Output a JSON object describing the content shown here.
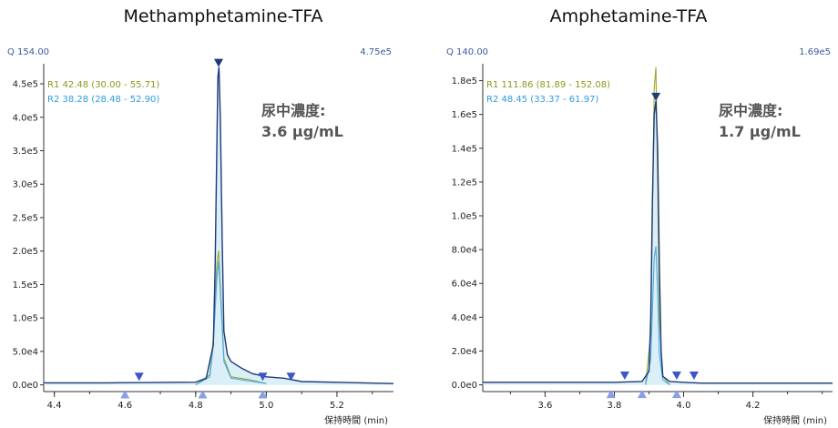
{
  "chart_data": [
    {
      "type": "line",
      "title": "Methamphetamine-TFA",
      "quant_label": "Q 154.00",
      "max_label": "4.75e5",
      "r1_label": "R1 42.48 (30.00 - 55.71)",
      "r2_label": "R2 38.28 (28.48 - 52.90)",
      "concentration_label": "尿中濃度:",
      "concentration_value": "3.6 μg/mL",
      "xlabel": "保持時間 (min)",
      "xlim": [
        4.37,
        5.36
      ],
      "ylim": [
        -10000,
        480000
      ],
      "xticks": [
        4.4,
        4.6,
        4.8,
        5.0,
        5.2
      ],
      "xtick_labels": [
        "4.4",
        "4.6",
        "4.8",
        "5.0",
        "5.2"
      ],
      "yticks": [
        0,
        50000,
        100000,
        150000,
        200000,
        250000,
        300000,
        350000,
        400000,
        450000
      ],
      "ytick_labels": [
        "0.0e0",
        "5.0e4",
        "1.0e5",
        "1.5e5",
        "2.0e5",
        "2.5e5",
        "3.0e5",
        "3.5e5",
        "4.0e5",
        "4.5e5"
      ],
      "peak_rt": 4.865,
      "series": [
        {
          "color": "#1f3a7a",
          "x": [
            4.37,
            4.55,
            4.8,
            4.83,
            4.85,
            4.855,
            4.86,
            4.863,
            4.866,
            4.87,
            4.875,
            4.88,
            4.89,
            4.9,
            4.93,
            4.96,
            5.0,
            5.05,
            5.1,
            5.36
          ],
          "y": [
            3000,
            3000,
            4000,
            10000,
            60000,
            170000,
            360000,
            460000,
            475000,
            400000,
            220000,
            80000,
            45000,
            35000,
            25000,
            17000,
            12000,
            10000,
            5000,
            2000
          ]
        },
        {
          "color": "#9aa82a",
          "x": [
            4.8,
            4.84,
            4.85,
            4.86,
            4.865,
            4.87,
            4.88,
            4.9,
            4.95,
            5.0
          ],
          "y": [
            0,
            15000,
            70000,
            180000,
            200000,
            150000,
            40000,
            12000,
            8000,
            2000
          ]
        },
        {
          "color": "#4aa8e8",
          "x": [
            4.8,
            4.84,
            4.85,
            4.86,
            4.865,
            4.87,
            4.88,
            4.9,
            4.95,
            5.0
          ],
          "y": [
            0,
            12000,
            60000,
            160000,
            185000,
            140000,
            35000,
            10000,
            6000,
            2000
          ]
        }
      ],
      "markers": [
        {
          "x": 4.865,
          "y": 475000,
          "dir": "down",
          "color": "#1f3a7a"
        },
        {
          "x": 4.64,
          "y": 6000,
          "dir": "down",
          "color": "#3a56c8"
        },
        {
          "x": 4.99,
          "y": 6000,
          "dir": "down",
          "color": "#3a56c8"
        },
        {
          "x": 5.07,
          "y": 6000,
          "dir": "down",
          "color": "#3a56c8"
        },
        {
          "x": 4.6,
          "y": -8000,
          "dir": "up",
          "color": "#8a9fe8"
        },
        {
          "x": 4.82,
          "y": -8000,
          "dir": "up",
          "color": "#8a9fe8"
        },
        {
          "x": 4.99,
          "y": -8000,
          "dir": "up",
          "color": "#8a9fe8"
        }
      ]
    },
    {
      "type": "line",
      "title": "Amphetamine-TFA",
      "quant_label": "Q 140.00",
      "max_label": "1.69e5",
      "r1_label": "R1 111.86 (81.89 - 152.08)",
      "r2_label": "R2 48.45 (33.37 - 61.97)",
      "concentration_label": "尿中濃度:",
      "concentration_value": "1.7 μg/mL",
      "xlabel": "保持時間 (min)",
      "xlim": [
        3.42,
        4.43
      ],
      "ylim": [
        -4000,
        190000
      ],
      "xticks": [
        3.6,
        3.8,
        4.0,
        4.2
      ],
      "xtick_labels": [
        "3.6",
        "3.8",
        "4.0",
        "4.2"
      ],
      "yticks": [
        0,
        20000,
        40000,
        60000,
        80000,
        100000,
        120000,
        140000,
        160000,
        180000
      ],
      "ytick_labels": [
        "0.0e0",
        "2.0e4",
        "4.0e4",
        "6.0e4",
        "8.0e4",
        "1.0e5",
        "1.2e5",
        "1.4e5",
        "1.6e5",
        "1.8e5"
      ],
      "peak_rt": 3.92,
      "series": [
        {
          "color": "#1f3a7a",
          "x": [
            3.42,
            3.8,
            3.88,
            3.9,
            3.905,
            3.91,
            3.915,
            3.92,
            3.925,
            3.93,
            3.935,
            3.94,
            3.96,
            4.0,
            4.05,
            4.43
          ],
          "y": [
            1500,
            1500,
            2000,
            8000,
            40000,
            110000,
            160000,
            168000,
            140000,
            70000,
            20000,
            5000,
            2000,
            1500,
            1000,
            1000
          ]
        },
        {
          "color": "#9aa82a",
          "x": [
            3.89,
            3.905,
            3.91,
            3.915,
            3.92,
            3.925,
            3.93,
            3.94,
            3.96
          ],
          "y": [
            0,
            30000,
            100000,
            175000,
            188000,
            120000,
            40000,
            5000,
            0
          ]
        },
        {
          "color": "#4aa8e8",
          "x": [
            3.89,
            3.905,
            3.91,
            3.915,
            3.92,
            3.925,
            3.93,
            3.94,
            3.96
          ],
          "y": [
            0,
            15000,
            45000,
            75000,
            82000,
            55000,
            18000,
            3000,
            0
          ]
        }
      ],
      "markers": [
        {
          "x": 3.92,
          "y": 168000,
          "dir": "down",
          "color": "#1f3a7a"
        },
        {
          "x": 3.83,
          "y": 3000,
          "dir": "down",
          "color": "#3a56c8"
        },
        {
          "x": 3.98,
          "y": 3000,
          "dir": "down",
          "color": "#3a56c8"
        },
        {
          "x": 4.03,
          "y": 3000,
          "dir": "down",
          "color": "#3a56c8"
        },
        {
          "x": 3.79,
          "y": -3000,
          "dir": "up",
          "color": "#8a9fe8"
        },
        {
          "x": 3.88,
          "y": -3000,
          "dir": "up",
          "color": "#8a9fe8"
        },
        {
          "x": 3.98,
          "y": -3000,
          "dir": "up",
          "color": "#8a9fe8"
        }
      ]
    }
  ]
}
